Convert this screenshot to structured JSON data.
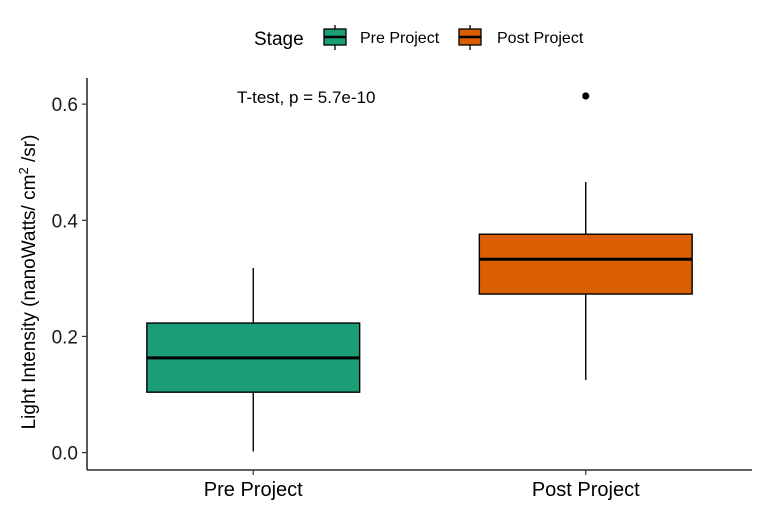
{
  "chart_data": {
    "type": "boxplot",
    "ylabel": {
      "prefix": "Light Intensity  (nanoWatts/ cm",
      "superscript": "2",
      "suffix": " /sr)"
    },
    "ylim": [
      -0.03,
      0.645
    ],
    "yticks": [
      0.0,
      0.2,
      0.4,
      0.6
    ],
    "ytick_labels": [
      "0.0",
      "0.2",
      "0.4",
      "0.6"
    ],
    "categories": [
      "Pre Project",
      "Post Project"
    ],
    "legend": {
      "title": "Stage",
      "position": "top",
      "entries": [
        "Pre Project",
        "Post Project"
      ]
    },
    "annotation": "T-test, p = 5.7e-10",
    "colors": {
      "Pre Project": "#1b9e77",
      "Post Project": "#d95f02"
    },
    "boxes": [
      {
        "category": "Pre Project",
        "min": 0.002,
        "q1": 0.104,
        "median": 0.163,
        "q3": 0.223,
        "max": 0.318,
        "outliers": []
      },
      {
        "category": "Post Project",
        "min": 0.125,
        "q1": 0.273,
        "median": 0.333,
        "q3": 0.376,
        "max": 0.466,
        "outliers": [
          0.614
        ]
      }
    ]
  }
}
